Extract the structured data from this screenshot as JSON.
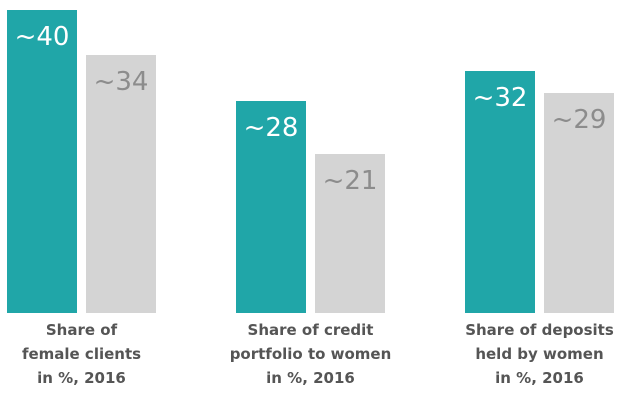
{
  "chart_data": {
    "type": "bar",
    "categories": [
      "Share of\nfemale clients\nin %, 2016",
      "Share of credit\nportfolio to women\nin %, 2016",
      "Share of deposits\nheld by women\nin %, 2016"
    ],
    "series": [
      {
        "color": "#20a6a8",
        "label_color": "#ffffff",
        "values": [
          40,
          28,
          32
        ],
        "value_labels": [
          "~40",
          "~28",
          "~32"
        ]
      },
      {
        "color": "#d4d4d4",
        "label_color": "#8c8c8c",
        "values": [
          34,
          21,
          29
        ],
        "value_labels": [
          "~34",
          "~21",
          "~29"
        ]
      }
    ]
  }
}
